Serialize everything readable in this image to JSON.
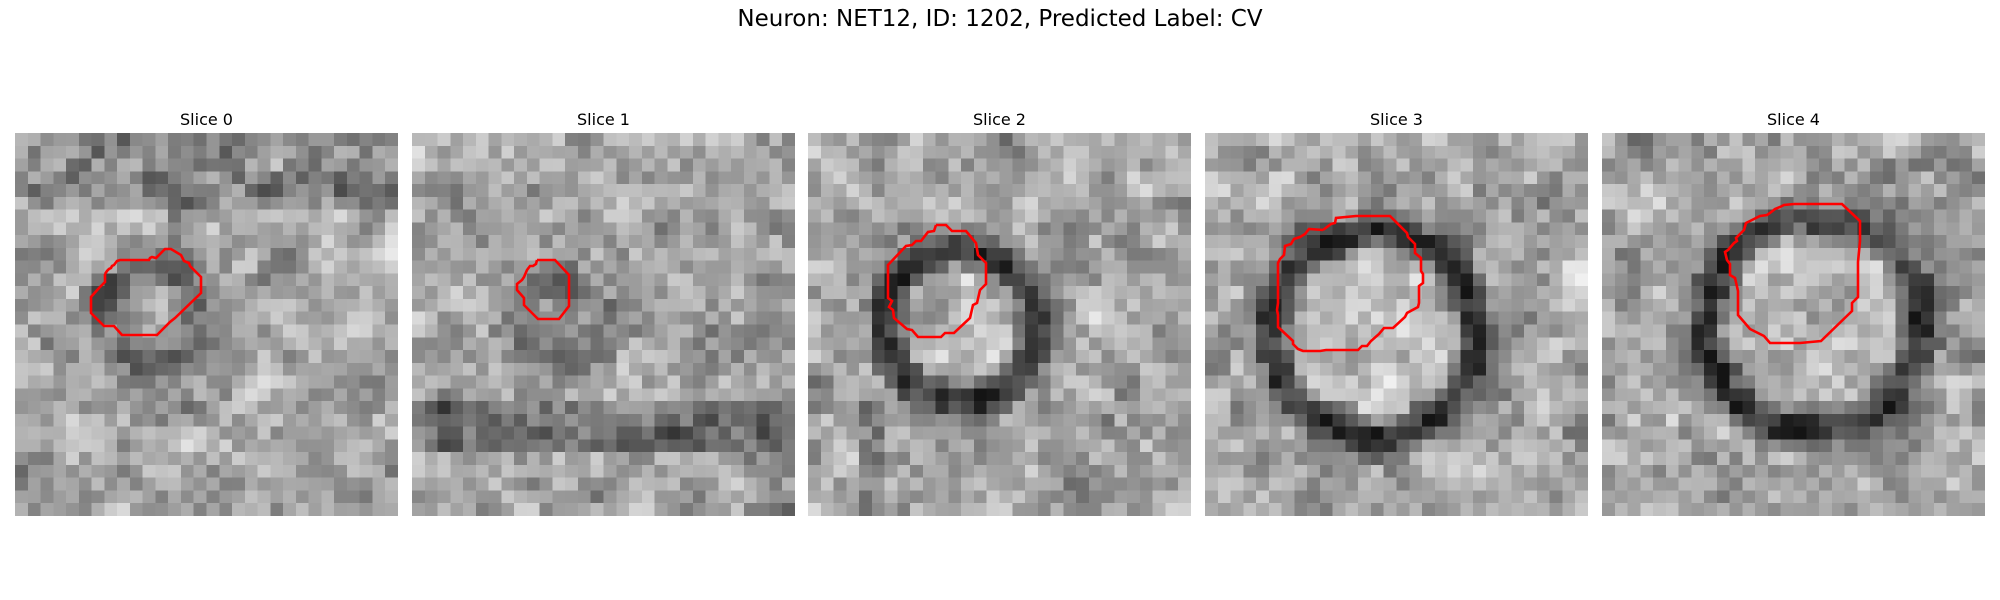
{
  "figure": {
    "title": "Neuron: NET12, ID: 1202, Predicted Label: CV"
  },
  "panels": [
    {
      "title": "Slice 0",
      "vesicle_center": [
        0.36,
        0.48
      ],
      "vesicle_radius": 0.13,
      "image_description_icon": "grayscale-em-patch"
    },
    {
      "title": "Slice 1",
      "vesicle_center": [
        0.4,
        0.5
      ],
      "vesicle_radius": 0.11,
      "image_description_icon": "grayscale-em-patch"
    },
    {
      "title": "Slice 2",
      "vesicle_center": [
        0.4,
        0.5
      ],
      "vesicle_radius": 0.2,
      "image_description_icon": "grayscale-em-patch"
    },
    {
      "title": "Slice 3",
      "vesicle_center": [
        0.44,
        0.52
      ],
      "vesicle_radius": 0.27,
      "image_description_icon": "grayscale-em-patch"
    },
    {
      "title": "Slice 4",
      "vesicle_center": [
        0.55,
        0.5
      ],
      "vesicle_radius": 0.28,
      "image_description_icon": "grayscale-em-patch"
    }
  ],
  "colors": {
    "contour": "#ff0000"
  }
}
